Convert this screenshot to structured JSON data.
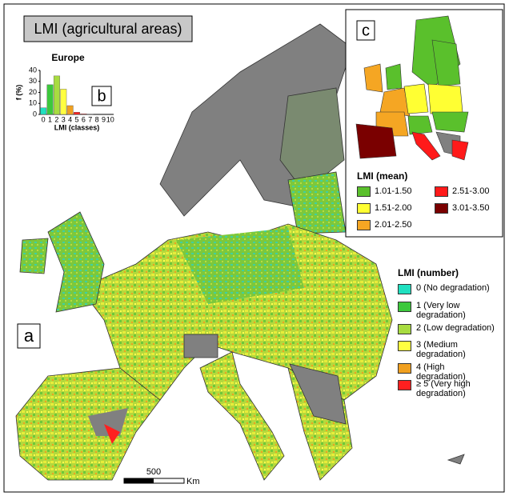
{
  "title": "LMI (agricultural areas)",
  "panels": {
    "a": "a",
    "b": "b",
    "c": "c"
  },
  "chart_data": {
    "type": "bar",
    "title": "Europe",
    "y_label": "f (%)",
    "x_label": "LMI (classes)",
    "categories": [
      "0",
      "1",
      "2",
      "3",
      "4",
      "5",
      "6",
      "7",
      "8",
      "9",
      "10"
    ],
    "values": [
      6,
      27,
      35,
      23,
      8,
      2,
      0.5,
      0.3,
      0,
      0,
      0
    ],
    "colors": [
      "#20e0c0",
      "#3cc83c",
      "#a8dc40",
      "#ffff40",
      "#f0a020",
      "#ff2020",
      "#ff2020",
      "#ff2020",
      "#ff2020",
      "#ff2020",
      "#ff2020"
    ],
    "ylim": [
      0,
      40
    ],
    "yticks": [
      0,
      10,
      20,
      30,
      40
    ]
  },
  "legend_number": {
    "title": "LMI (number)",
    "items": [
      {
        "label": "0 (No degradation)",
        "color": "#20e0c0"
      },
      {
        "label": "1 (Very low degradation)",
        "color": "#3cc83c"
      },
      {
        "label": "2 (Low degradation)",
        "color": "#a8dc40"
      },
      {
        "label": "3 (Medium degradation)",
        "color": "#ffff40"
      },
      {
        "label": "4 (High degradation)",
        "color": "#f0a020"
      },
      {
        "label": "≥ 5 (Very high degradation)",
        "color": "#ff2020"
      }
    ]
  },
  "legend_mean": {
    "title": "LMI (mean)",
    "items": [
      {
        "label": "1.01-1.50",
        "color": "#5ac02c"
      },
      {
        "label": "1.51-2.00",
        "color": "#ffff33"
      },
      {
        "label": "2.01-2.50",
        "color": "#f5a623"
      },
      {
        "label": "2.51-3.00",
        "color": "#ff1a1a"
      },
      {
        "label": "3.01-3.50",
        "color": "#7a0000"
      }
    ]
  },
  "scale_bar": {
    "distance": "500",
    "unit": "Km"
  }
}
